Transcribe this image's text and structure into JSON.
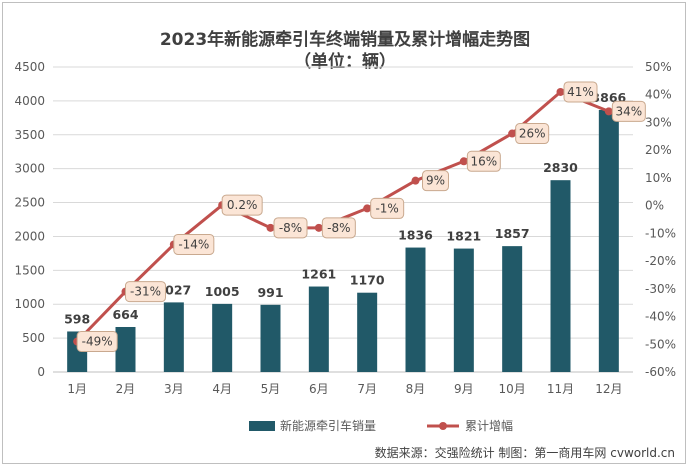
{
  "chart_data": {
    "type": "bar+line",
    "title": "2023年新能源牵引车终端销量及累计增幅走势图",
    "subtitle": "（单位：辆）",
    "categories": [
      "1月",
      "2月",
      "3月",
      "4月",
      "5月",
      "6月",
      "7月",
      "8月",
      "9月",
      "10月",
      "11月",
      "12月"
    ],
    "series": [
      {
        "name": "新能源牵引车销量",
        "kind": "bar",
        "axis": "left",
        "color": "#215968",
        "values": [
          598,
          664,
          1027,
          1005,
          991,
          1261,
          1170,
          1836,
          1821,
          1857,
          2830,
          3866
        ],
        "labels": [
          "598",
          "664",
          "1027",
          "1005",
          "991",
          "1261",
          "1170",
          "1836",
          "1821",
          "1857",
          "2830",
          "3866"
        ]
      },
      {
        "name": "累计增幅",
        "kind": "line",
        "axis": "right",
        "color": "#c0504d",
        "values": [
          -49,
          -31,
          -14,
          0.2,
          -8,
          -8,
          -1,
          9,
          16,
          26,
          41,
          34
        ],
        "labels": [
          "-49%",
          "-31%",
          "-14%",
          "0.2%",
          "-8%",
          "-8%",
          "-1%",
          "9%",
          "16%",
          "26%",
          "41%",
          "34%"
        ]
      }
    ],
    "left_axis": {
      "min": 0,
      "max": 4500,
      "step": 500,
      "ticks": [
        "0",
        "500",
        "1000",
        "1500",
        "2000",
        "2500",
        "3000",
        "3500",
        "4000",
        "4500"
      ]
    },
    "right_axis": {
      "min": -60,
      "max": 50,
      "step": 10,
      "ticks": [
        "-60%",
        "-50%",
        "-40%",
        "-30%",
        "-20%",
        "-10%",
        "0%",
        "10%",
        "20%",
        "30%",
        "40%",
        "50%"
      ]
    },
    "grid": true,
    "legend": "bottom"
  },
  "source_note": "数据来源：交强险统计 制图：第一商用车网 cvworld.cn"
}
